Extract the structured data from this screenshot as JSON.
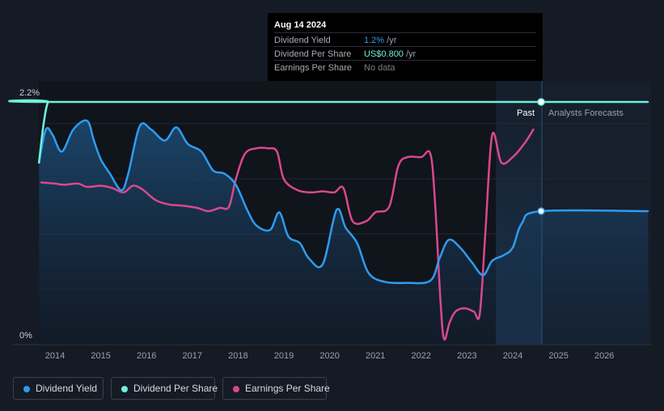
{
  "tooltip": {
    "date": "Aug 14 2024",
    "rows": [
      {
        "label": "Dividend Yield",
        "value": "1.2%",
        "unit": " /yr"
      },
      {
        "label": "Dividend Per Share",
        "value": "US$0.800",
        "unit": " /yr"
      },
      {
        "label": "Earnings Per Share",
        "value": "No data",
        "unit": ""
      }
    ]
  },
  "legend": [
    {
      "label": "Dividend Yield",
      "color": "#2d9cf0"
    },
    {
      "label": "Dividend Per Share",
      "color": "#6ff0dc"
    },
    {
      "label": "Earnings Per Share",
      "color": "#d8488f"
    }
  ],
  "chart_data": {
    "type": "line",
    "ylim": [
      0,
      2.2
    ],
    "y_tick_labels": [
      "2.2%",
      "0%"
    ],
    "x_tick_labels": [
      "2014",
      "2015",
      "2016",
      "2017",
      "2018",
      "2019",
      "2020",
      "2021",
      "2022",
      "2023",
      "2024",
      "2025",
      "2026"
    ],
    "past_label": "Past",
    "forecast_label": "Analysts Forecasts",
    "forecast_start": 2023.6,
    "marker_date": 2024.62,
    "series": [
      {
        "name": "Dividend Yield",
        "color": "#2d9cf0",
        "points": [
          [
            2013.65,
            1.65
          ],
          [
            2013.8,
            1.95
          ],
          [
            2013.95,
            1.9
          ],
          [
            2014.15,
            1.75
          ],
          [
            2014.4,
            1.95
          ],
          [
            2014.7,
            2.03
          ],
          [
            2014.85,
            1.85
          ],
          [
            2015.0,
            1.68
          ],
          [
            2015.2,
            1.55
          ],
          [
            2015.45,
            1.4
          ],
          [
            2015.6,
            1.55
          ],
          [
            2015.85,
            1.98
          ],
          [
            2016.1,
            1.95
          ],
          [
            2016.4,
            1.85
          ],
          [
            2016.65,
            1.97
          ],
          [
            2016.9,
            1.82
          ],
          [
            2017.2,
            1.75
          ],
          [
            2017.45,
            1.58
          ],
          [
            2017.7,
            1.55
          ],
          [
            2017.95,
            1.45
          ],
          [
            2018.2,
            1.22
          ],
          [
            2018.4,
            1.08
          ],
          [
            2018.7,
            1.04
          ],
          [
            2018.9,
            1.2
          ],
          [
            2019.1,
            0.98
          ],
          [
            2019.35,
            0.92
          ],
          [
            2019.55,
            0.78
          ],
          [
            2019.85,
            0.73
          ],
          [
            2020.15,
            1.22
          ],
          [
            2020.35,
            1.06
          ],
          [
            2020.6,
            0.92
          ],
          [
            2020.85,
            0.65
          ],
          [
            2021.2,
            0.57
          ],
          [
            2021.7,
            0.56
          ],
          [
            2022.2,
            0.58
          ],
          [
            2022.4,
            0.78
          ],
          [
            2022.6,
            0.95
          ],
          [
            2022.85,
            0.88
          ],
          [
            2023.1,
            0.75
          ],
          [
            2023.35,
            0.63
          ],
          [
            2023.55,
            0.76
          ],
          [
            2023.8,
            0.81
          ],
          [
            2024.0,
            0.88
          ],
          [
            2024.2,
            1.1
          ],
          [
            2024.62,
            1.21
          ],
          [
            2026.95,
            1.21
          ]
        ]
      },
      {
        "name": "Dividend Per Share",
        "color": "#6ff0dc",
        "points": [
          [
            2013.65,
            1.65
          ],
          [
            2013.75,
            2.0
          ],
          [
            2013.85,
            2.2
          ],
          [
            2014.0,
            2.2
          ],
          [
            2026.95,
            2.2
          ]
        ]
      },
      {
        "name": "Earnings Per Share",
        "color": "#d8488f",
        "points": [
          [
            2013.7,
            1.47
          ],
          [
            2014.0,
            1.46
          ],
          [
            2014.2,
            1.45
          ],
          [
            2014.5,
            1.46
          ],
          [
            2014.7,
            1.43
          ],
          [
            2015.0,
            1.44
          ],
          [
            2015.25,
            1.42
          ],
          [
            2015.5,
            1.38
          ],
          [
            2015.7,
            1.44
          ],
          [
            2015.9,
            1.41
          ],
          [
            2016.2,
            1.31
          ],
          [
            2016.5,
            1.27
          ],
          [
            2016.8,
            1.26
          ],
          [
            2017.1,
            1.24
          ],
          [
            2017.35,
            1.21
          ],
          [
            2017.6,
            1.24
          ],
          [
            2017.8,
            1.25
          ],
          [
            2017.95,
            1.5
          ],
          [
            2018.15,
            1.73
          ],
          [
            2018.4,
            1.78
          ],
          [
            2018.65,
            1.78
          ],
          [
            2018.85,
            1.75
          ],
          [
            2019.0,
            1.5
          ],
          [
            2019.3,
            1.4
          ],
          [
            2019.6,
            1.38
          ],
          [
            2019.85,
            1.39
          ],
          [
            2020.1,
            1.38
          ],
          [
            2020.3,
            1.42
          ],
          [
            2020.5,
            1.12
          ],
          [
            2020.8,
            1.12
          ],
          [
            2021.0,
            1.2
          ],
          [
            2021.3,
            1.25
          ],
          [
            2021.5,
            1.62
          ],
          [
            2021.7,
            1.7
          ],
          [
            2022.0,
            1.7
          ],
          [
            2022.2,
            1.73
          ],
          [
            2022.3,
            1.3
          ],
          [
            2022.42,
            0.4
          ],
          [
            2022.5,
            0.05
          ],
          [
            2022.62,
            0.2
          ],
          [
            2022.75,
            0.3
          ],
          [
            2022.95,
            0.33
          ],
          [
            2023.15,
            0.3
          ],
          [
            2023.28,
            0.28
          ],
          [
            2023.4,
            1.0
          ],
          [
            2023.55,
            1.9
          ],
          [
            2023.75,
            1.65
          ],
          [
            2024.0,
            1.7
          ],
          [
            2024.25,
            1.82
          ],
          [
            2024.45,
            1.95
          ]
        ]
      }
    ]
  }
}
